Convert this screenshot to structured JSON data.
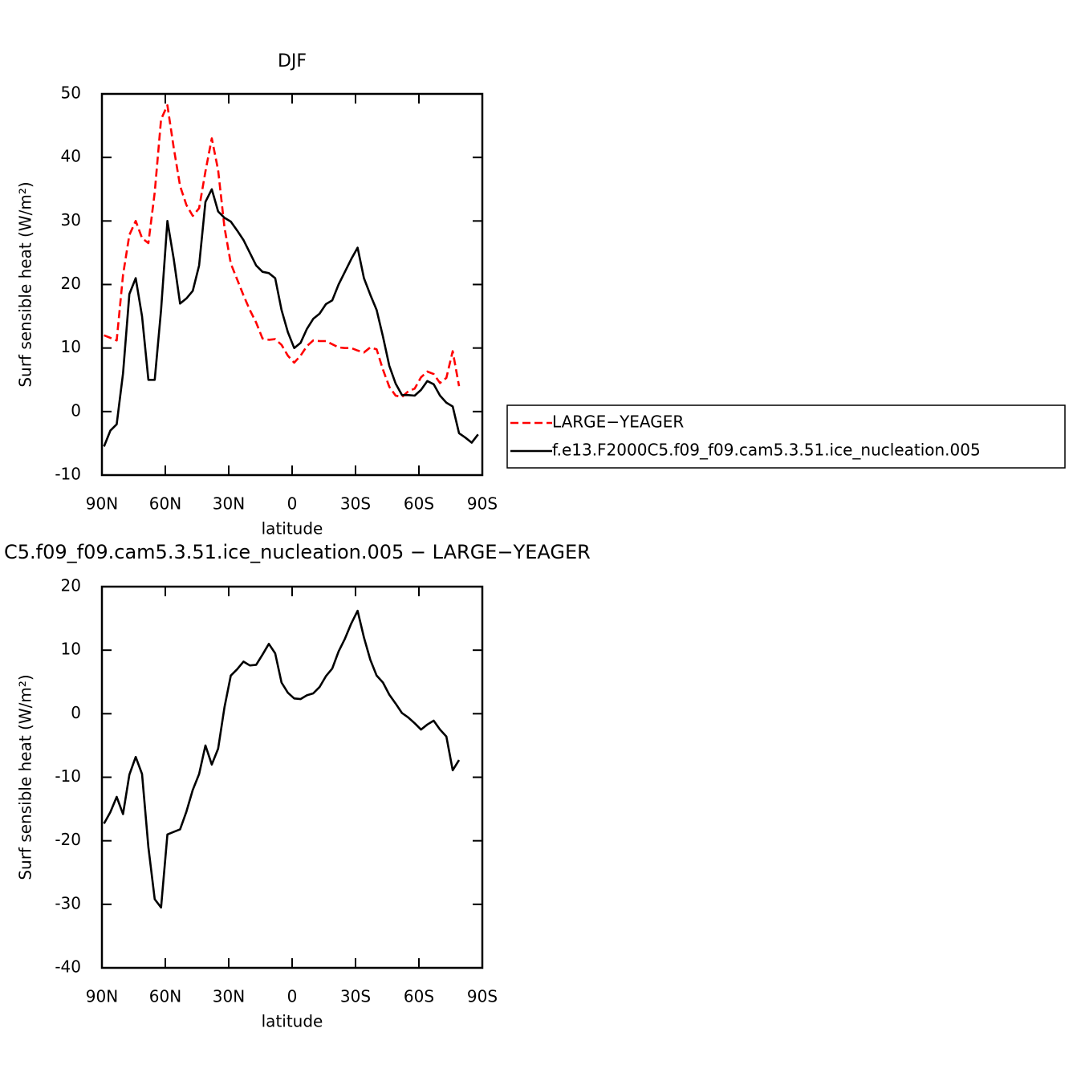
{
  "chart_data": [
    {
      "type": "line",
      "title": "DJF",
      "xlabel": "latitude",
      "ylabel": "Surf sensible heat (W/m²)",
      "x": [
        89,
        86,
        83,
        80,
        77,
        74,
        71,
        68,
        65,
        62,
        59,
        56,
        53,
        50,
        47,
        44,
        41,
        38,
        35,
        32,
        29,
        26,
        23,
        20,
        17,
        14,
        11,
        8,
        5,
        2,
        -1,
        -4,
        -7,
        -10,
        -13,
        -16,
        -19,
        -22,
        -25,
        -28,
        -31,
        -34,
        -37,
        -40,
        -43,
        -46,
        -49,
        -52,
        -55,
        -58,
        -61,
        -64,
        -67,
        -70,
        -73,
        -76,
        -79,
        -82,
        -85,
        -88
      ],
      "series": [
        {
          "name": "LARGE−YEAGER",
          "color": "#ff0000",
          "dashed": true,
          "values": [
            12,
            11.6,
            11.2,
            21.5,
            27.8,
            30,
            27.3,
            26.5,
            34.5,
            46,
            48.2,
            41.5,
            35.5,
            32.5,
            30.8,
            32,
            37.8,
            43,
            38,
            29,
            23.3,
            20.8,
            18.3,
            16,
            14,
            11.5,
            11.3,
            11.4,
            10.5,
            8.8,
            7.7,
            8.8,
            10.3,
            11.2,
            11.1,
            11.1,
            10.6,
            10.1,
            10,
            10,
            9.6,
            9.3,
            10.1,
            9.8,
            6.6,
            3.9,
            2.5,
            2.3,
            3.2,
            3.6,
            5.4,
            6.3,
            5.9,
            4.5,
            5.3,
            9.5,
            4,
            null,
            null,
            null
          ]
        },
        {
          "name": "f.e13.F2000C5.f09_f09.cam5.3.51.ice_nucleation.005",
          "color": "#000000",
          "dashed": false,
          "values": [
            -5.5,
            -3,
            -2,
            6,
            18.5,
            21,
            15,
            5,
            5,
            16,
            30,
            24,
            17,
            17.8,
            19,
            23,
            33,
            35,
            31.5,
            30.5,
            29.9,
            28.5,
            27,
            25,
            23,
            22,
            21.8,
            21,
            16,
            12.5,
            10,
            10.8,
            13,
            14.6,
            15.4,
            16.9,
            17.5,
            20,
            22,
            24,
            25.8,
            21,
            18.4,
            16,
            11.8,
            7.2,
            4.4,
            2.6,
            2.6,
            2.5,
            3.4,
            4.8,
            4.3,
            2.5,
            1.4,
            0.8,
            -3.4,
            -4.1,
            -4.9,
            -3.6
          ]
        }
      ],
      "xlim": [
        90,
        -90
      ],
      "xticks": [
        {
          "value": 90,
          "label": "90N"
        },
        {
          "value": 60,
          "label": "60N"
        },
        {
          "value": 30,
          "label": "30N"
        },
        0,
        {
          "value": -30,
          "label": "30S"
        },
        {
          "value": -60,
          "label": "60S"
        },
        {
          "value": -90,
          "label": "90S"
        }
      ],
      "ylim": [
        -10,
        50
      ],
      "yticks": [
        -10,
        0,
        10,
        20,
        30,
        40,
        50
      ],
      "legend": "right"
    },
    {
      "type": "line",
      "title": "C5.f09_f09.cam5.3.51.ice_nucleation.005 − LARGE−YEAGER",
      "xlabel": "latitude",
      "ylabel": "Surf sensible heat (W/m²)",
      "x": [
        89,
        86,
        83,
        80,
        77,
        74,
        71,
        68,
        65,
        62,
        59,
        56,
        53,
        50,
        47,
        44,
        41,
        38,
        35,
        32,
        29,
        26,
        23,
        20,
        17,
        14,
        11,
        8,
        5,
        2,
        -1,
        -4,
        -7,
        -10,
        -13,
        -16,
        -19,
        -22,
        -25,
        -28,
        -31,
        -34,
        -37,
        -40,
        -43,
        -46,
        -49,
        -52,
        -55,
        -58,
        -61,
        -64,
        -67,
        -70,
        -73,
        -76,
        -79,
        -82,
        -85,
        -88
      ],
      "values": [
        -17.3,
        -15.5,
        -13.1,
        -15.8,
        -9.6,
        -6.8,
        -9.5,
        -21,
        -29.2,
        -30.5,
        -19,
        -18.6,
        -18.2,
        -15.4,
        -12,
        -9.5,
        -5,
        -8,
        -5.5,
        1,
        6,
        7,
        8.2,
        7.6,
        7.7,
        9.3,
        11,
        9.5,
        4.9,
        3.3,
        2.4,
        2.3,
        2.9,
        3.2,
        4.2,
        5.9,
        7.1,
        9.8,
        11.8,
        14.2,
        16.2,
        12,
        8.5,
        6,
        4.9,
        3,
        1.6,
        0.1,
        -0.6,
        -1.5,
        -2.5,
        -1.7,
        -1.1,
        -2.5,
        -3.6,
        -8.9,
        -7.3,
        null,
        null,
        null
      ],
      "color": "#000000",
      "xlim": [
        90,
        -90
      ],
      "xticks": [
        {
          "value": 90,
          "label": "90N"
        },
        {
          "value": 60,
          "label": "60N"
        },
        {
          "value": 30,
          "label": "30N"
        },
        0,
        {
          "value": -30,
          "label": "30S"
        },
        {
          "value": -60,
          "label": "60S"
        },
        {
          "value": -90,
          "label": "90S"
        }
      ],
      "ylim": [
        -40,
        20
      ],
      "yticks": [
        -40,
        -30,
        -20,
        -10,
        0,
        10,
        20
      ]
    }
  ]
}
